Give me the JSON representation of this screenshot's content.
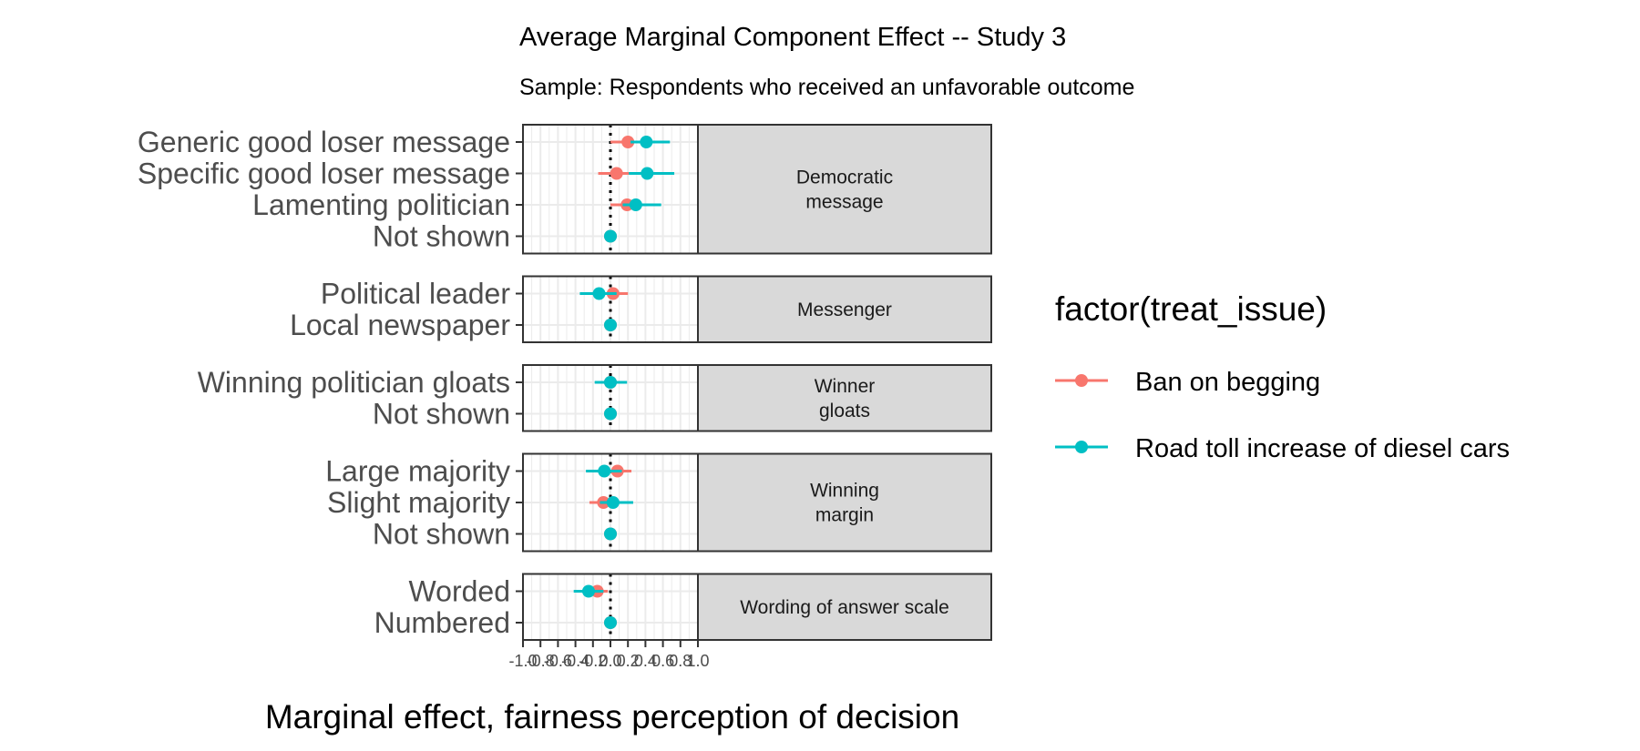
{
  "chart_data": {
    "type": "scatter",
    "title": "Average Marginal Component Effect -- Study 3",
    "subtitle": "Sample: Respondents who received an unfavorable outcome",
    "xlabel": "Marginal effect, fairness perception of decision",
    "ylabel": "",
    "xlim": [
      -1.0,
      1.0
    ],
    "xticks": [
      "-1.0",
      "-0.8",
      "-0.6",
      "-0.4",
      "-0.2",
      "0.0",
      "0.2",
      "0.4",
      "0.6",
      "0.8",
      "1.0"
    ],
    "reference_line_x": 0.0,
    "grid": true,
    "legend": {
      "title": "factor(treat_issue)",
      "position": "right",
      "entries": [
        {
          "name": "Ban on begging",
          "color": "#F8766D"
        },
        {
          "name": "Road toll increase of diesel cars",
          "color": "#00BFC4"
        }
      ]
    },
    "panels": [
      {
        "strip": [
          "Democratic",
          "message"
        ],
        "levels": [
          {
            "label": "Generic good loser message",
            "points": [
              {
                "x": 0.2,
                "lo": 0.0,
                "hi": 0.4
              },
              {
                "x": 0.41,
                "lo": 0.23,
                "hi": 0.68
              }
            ]
          },
          {
            "label": "Specific good loser message",
            "points": [
              {
                "x": 0.07,
                "lo": -0.14,
                "hi": 0.25
              },
              {
                "x": 0.42,
                "lo": 0.21,
                "hi": 0.73
              }
            ]
          },
          {
            "label": "Lamenting politician",
            "points": [
              {
                "x": 0.19,
                "lo": 0.0,
                "hi": 0.34
              },
              {
                "x": 0.29,
                "lo": 0.14,
                "hi": 0.58
              }
            ]
          },
          {
            "label": "Not shown",
            "points": [
              {
                "x": 0.0,
                "lo": 0.0,
                "hi": 0.0
              },
              {
                "x": 0.0,
                "lo": 0.0,
                "hi": 0.0
              }
            ]
          }
        ]
      },
      {
        "strip": [
          "Messenger"
        ],
        "levels": [
          {
            "label": "Political leader",
            "points": [
              {
                "x": 0.03,
                "lo": -0.08,
                "hi": 0.2
              },
              {
                "x": -0.13,
                "lo": -0.35,
                "hi": 0.07
              }
            ]
          },
          {
            "label": "Local newspaper",
            "points": [
              {
                "x": 0.0,
                "lo": 0.0,
                "hi": 0.0
              },
              {
                "x": 0.0,
                "lo": 0.0,
                "hi": 0.0
              }
            ]
          }
        ]
      },
      {
        "strip": [
          "Winner",
          "gloats"
        ],
        "levels": [
          {
            "label": "Winning politician gloats",
            "points": [
              {
                "x": 0.0,
                "lo": -0.1,
                "hi": 0.14
              },
              {
                "x": 0.0,
                "lo": -0.18,
                "hi": 0.19
              }
            ]
          },
          {
            "label": "Not shown",
            "points": [
              {
                "x": 0.0,
                "lo": 0.0,
                "hi": 0.0
              },
              {
                "x": 0.0,
                "lo": 0.0,
                "hi": 0.0
              }
            ]
          }
        ]
      },
      {
        "strip": [
          "Winning",
          "margin"
        ],
        "levels": [
          {
            "label": "Large majority",
            "points": [
              {
                "x": 0.08,
                "lo": -0.08,
                "hi": 0.24
              },
              {
                "x": -0.07,
                "lo": -0.28,
                "hi": 0.13
              }
            ]
          },
          {
            "label": "Slight majority",
            "points": [
              {
                "x": -0.08,
                "lo": -0.24,
                "hi": 0.1
              },
              {
                "x": 0.03,
                "lo": -0.12,
                "hi": 0.26
              }
            ]
          },
          {
            "label": "Not shown",
            "points": [
              {
                "x": 0.0,
                "lo": 0.0,
                "hi": 0.0
              },
              {
                "x": 0.0,
                "lo": 0.0,
                "hi": 0.0
              }
            ]
          }
        ]
      },
      {
        "strip": [
          "Wording of answer scale"
        ],
        "levels": [
          {
            "label": "Worded",
            "points": [
              {
                "x": -0.15,
                "lo": -0.3,
                "hi": -0.03
              },
              {
                "x": -0.25,
                "lo": -0.42,
                "hi": -0.08
              }
            ]
          },
          {
            "label": "Numbered",
            "points": [
              {
                "x": 0.0,
                "lo": 0.0,
                "hi": 0.0
              },
              {
                "x": 0.0,
                "lo": 0.0,
                "hi": 0.0
              }
            ]
          }
        ]
      }
    ]
  }
}
